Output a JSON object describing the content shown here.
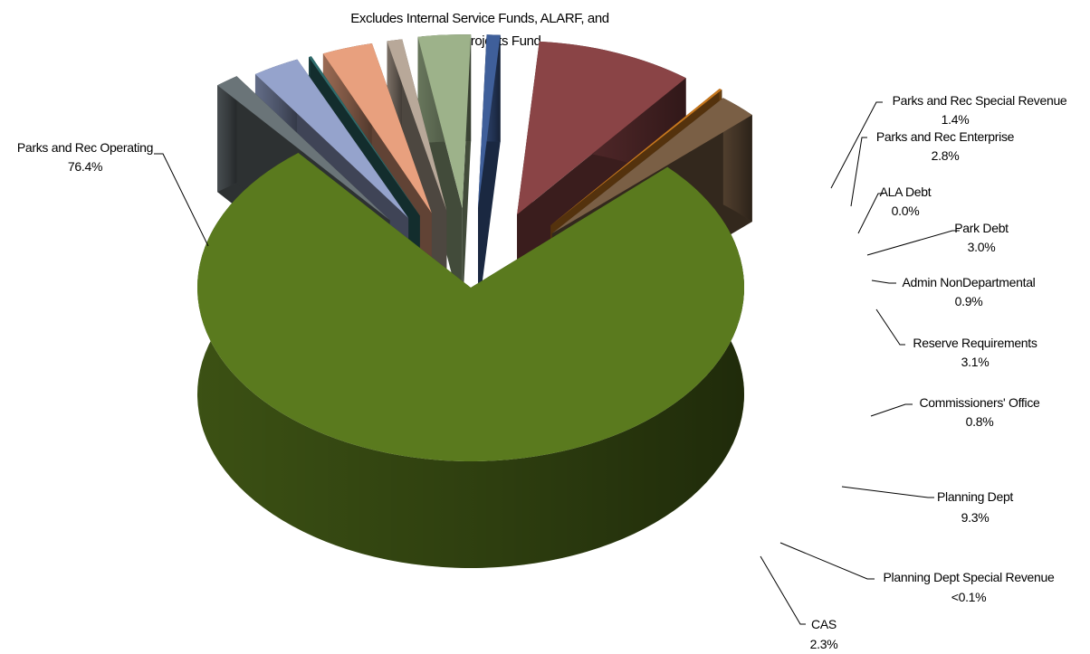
{
  "chart_data": {
    "type": "pie",
    "title_lines": [
      "Excludes Internal Service Funds, ALARF, and",
      "Capital Projects Fund"
    ],
    "slices": [
      {
        "name": "Parks and Rec Operating",
        "value": 76.4,
        "label": "76.4%",
        "color": "#5a7a1e"
      },
      {
        "name": "Parks and Rec Special Revenue",
        "value": 1.4,
        "label": "1.4%",
        "color": "#6a7478"
      },
      {
        "name": "Parks and Rec Enterprise",
        "value": 2.8,
        "label": "2.8%",
        "color": "#95a3cc"
      },
      {
        "name": "ALA Debt",
        "value": 0.0,
        "label": "0.0%",
        "color": "#2e6b6b"
      },
      {
        "name": "Park Debt",
        "value": 3.0,
        "label": "3.0%",
        "color": "#e8a07e"
      },
      {
        "name": "Admin NonDepartmental",
        "value": 0.9,
        "label": "0.9%",
        "color": "#b8a899"
      },
      {
        "name": "Reserve Requirements",
        "value": 3.1,
        "label": "3.1%",
        "color": "#9db28a"
      },
      {
        "name": "Commissioners' Office",
        "value": 0.8,
        "label": "0.8%",
        "color": "#3f5f9a"
      },
      {
        "name": "Planning Dept",
        "value": 9.3,
        "label": "9.3%",
        "color": "#8a4446"
      },
      {
        "name": "Planning Dept Special Revenue",
        "value": 0.05,
        "label": "<0.1%",
        "color": "#c8781e"
      },
      {
        "name": "CAS",
        "value": 2.3,
        "label": "2.3%",
        "color": "#7a5f45"
      }
    ]
  }
}
